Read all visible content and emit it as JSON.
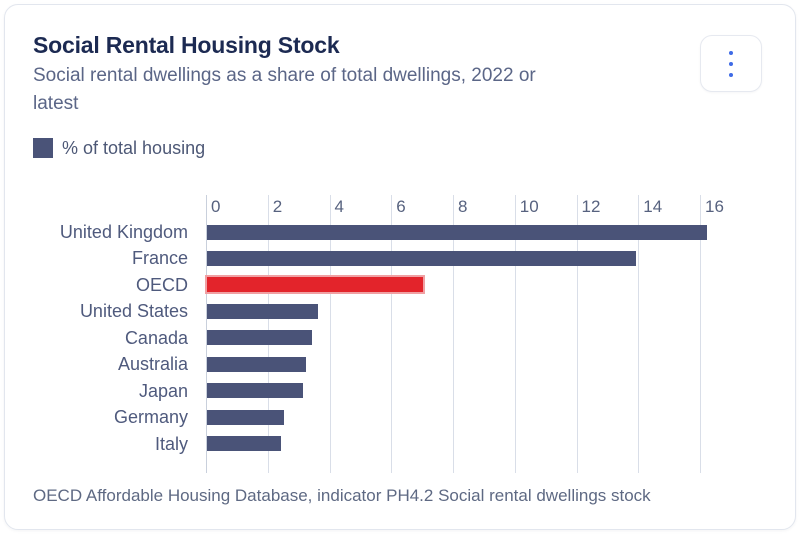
{
  "card": {
    "title": "Social Rental Housing Stock",
    "subtitle": "Social rental dwellings as a share of total dwellings, 2022 or latest",
    "source": "OECD Affordable Housing Database, indicator PH4.2 Social rental dwellings stock",
    "menu_icon": "kebab-vertical-icon"
  },
  "legend": {
    "label": "% of total housing"
  },
  "colors": {
    "bar": "#4a5378",
    "highlight_bar": "#e3242b",
    "highlight_outline": "#f0a0a3",
    "gridline": "#d9dee8",
    "title_text": "#1c2a52",
    "muted_text": "#5b6687",
    "menu_dots": "#3f6be6"
  },
  "chart_data": {
    "type": "bar",
    "orientation": "horizontal",
    "title": "Social Rental Housing Stock",
    "subtitle": "Social rental dwellings as a share of total dwellings, 2022 or latest",
    "xlabel": "% of total housing",
    "ylabel": "",
    "categories": [
      "United Kingdom",
      "France",
      "OECD",
      "United States",
      "Canada",
      "Australia",
      "Japan",
      "Germany",
      "Italy"
    ],
    "values": [
      16.2,
      13.9,
      7.0,
      3.6,
      3.4,
      3.2,
      3.1,
      2.5,
      2.4
    ],
    "highlight_category": "OECD",
    "xlim": [
      0,
      16
    ],
    "ticks": [
      0,
      2,
      4,
      6,
      8,
      10,
      12,
      14,
      16
    ],
    "grid": true,
    "legend_position": "top-left",
    "source": "OECD Affordable Housing Database, indicator PH4.2 Social rental dwellings stock"
  }
}
